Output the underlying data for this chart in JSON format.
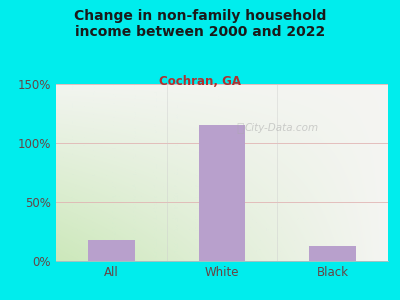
{
  "title": "Change in non-family household\nincome between 2000 and 2022",
  "subtitle": "Cochran, GA",
  "categories": [
    "All",
    "White",
    "Black"
  ],
  "values": [
    18,
    115,
    13
  ],
  "bar_color": "#b8a0cc",
  "title_color": "#1a1a1a",
  "subtitle_color": "#b03030",
  "background_color": "#00eded",
  "plot_bg_color_left": "#cce8bb",
  "plot_bg_color_right": "#e8ede0",
  "plot_bg_color_top": "#f0f0ee",
  "grid_color": "#e0b0b0",
  "axis_label_color": "#664444",
  "ylim": [
    0,
    150
  ],
  "yticks": [
    0,
    50,
    100,
    150
  ],
  "watermark": "City-Data.com"
}
